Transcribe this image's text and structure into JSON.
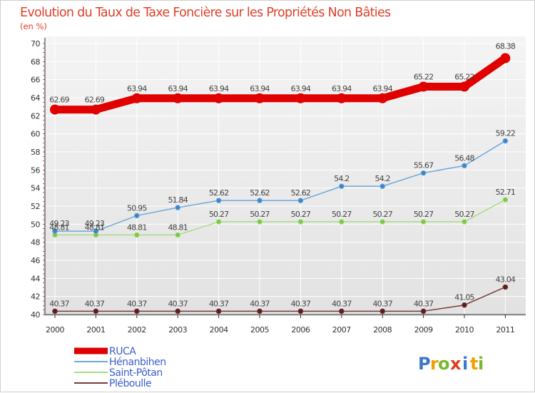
{
  "chart_data": {
    "type": "line",
    "title": "Evolution du Taux de Taxe Foncière sur les Propriétés Non Bâties",
    "subtitle": "(en %)",
    "x": [
      "2000",
      "2001",
      "2002",
      "2003",
      "2004",
      "2005",
      "2006",
      "2007",
      "2008",
      "2009",
      "2010",
      "2011"
    ],
    "ylim": [
      40,
      70
    ],
    "yticks": [
      40,
      42,
      44,
      46,
      48,
      50,
      52,
      54,
      56,
      58,
      60,
      62,
      64,
      66,
      68,
      70
    ],
    "series": [
      {
        "name": "RUCA",
        "color": "#e00000",
        "values": [
          62.69,
          62.69,
          63.94,
          63.94,
          63.94,
          63.94,
          63.94,
          63.94,
          63.94,
          65.22,
          65.22,
          68.38
        ],
        "labels": [
          "62.69",
          "62.69",
          "63.94",
          "63.94",
          "63.94",
          "63.94",
          "63.94",
          "63.94",
          "63.94",
          "65.22",
          "65.22",
          "68.38"
        ]
      },
      {
        "name": "Hénanbihen",
        "color": "#6fa8dc",
        "marker": "#3d85c6",
        "values": [
          49.23,
          49.23,
          50.95,
          51.84,
          52.62,
          52.62,
          52.62,
          54.2,
          54.2,
          55.67,
          56.48,
          59.22
        ],
        "labels": [
          "49.23",
          "49.23",
          "50.95",
          "51.84",
          "52.62",
          "52.62",
          "52.62",
          "54.2",
          "54.2",
          "55.67",
          "56.48",
          "59.22"
        ]
      },
      {
        "name": "Saint-Pôtan",
        "color": "#a8dc84",
        "marker": "#7dc742",
        "values": [
          48.81,
          48.81,
          48.81,
          48.81,
          50.27,
          50.27,
          50.27,
          50.27,
          50.27,
          50.27,
          50.27,
          52.71
        ],
        "labels": [
          "48.81",
          "48.81",
          "48.81",
          "48.81",
          "50.27",
          "50.27",
          "50.27",
          "50.27",
          "50.27",
          "50.27",
          "50.27",
          "52.71"
        ]
      },
      {
        "name": "Pléboulle",
        "color": "#7a3a3a",
        "marker": "#5a1e1e",
        "values": [
          40.37,
          40.37,
          40.37,
          40.37,
          40.37,
          40.37,
          40.37,
          40.37,
          40.37,
          40.37,
          41.05,
          43.04
        ],
        "labels": [
          "40.37",
          "40.37",
          "40.37",
          "40.37",
          "40.37",
          "40.37",
          "40.37",
          "40.37",
          "40.37",
          "40.37",
          "41.05",
          "43.04"
        ]
      }
    ]
  },
  "logo": {
    "letters": [
      "P",
      "r",
      "o",
      "x",
      "i",
      "t",
      "i"
    ],
    "colors": [
      "#3b78c8",
      "#f0a000",
      "#7ab82e",
      "#e03c1e",
      "#3b78c8",
      "#f0a000",
      "#7ab82e"
    ]
  }
}
